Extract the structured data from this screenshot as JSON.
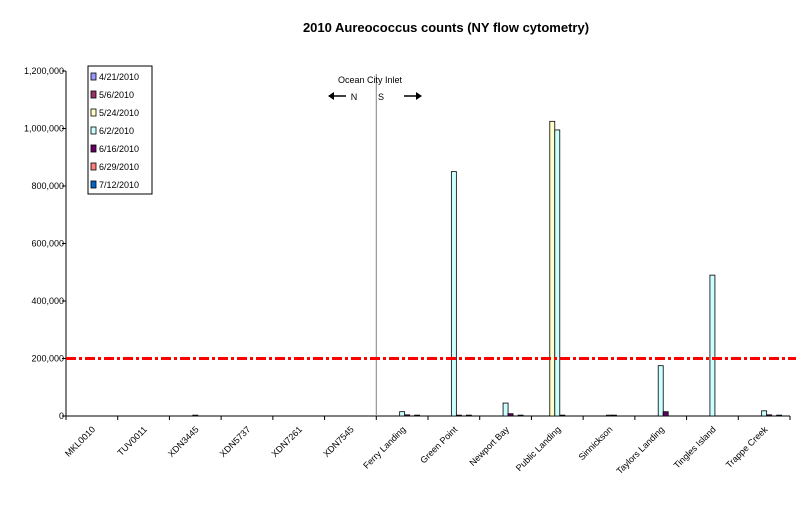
{
  "chart_data": {
    "type": "bar",
    "title": "2010 Aureococcus counts (NY flow cytometry)",
    "xlabel": "",
    "ylabel": "",
    "ylim": [
      0,
      1200000
    ],
    "yticks": [
      0,
      200000,
      400000,
      600000,
      800000,
      1000000,
      1200000
    ],
    "ytick_labels": [
      "0",
      "200,000",
      "400,000",
      "600,000",
      "800,000",
      "1,000,000",
      "1,200,000"
    ],
    "grid": false,
    "legend_position": "top-left",
    "categories": [
      "MKL0010",
      "TUV0011",
      "XDN3445",
      "XDN5737",
      "XDN7261",
      "XDN7545",
      "Ferry Landing",
      "Green Point",
      "Newport Bay",
      "Public Landing",
      "Sinnickson",
      "Taylors Landing",
      "Tingles Island",
      "Trappe Creek"
    ],
    "series": [
      {
        "name": "4/21/2010",
        "color": "#9999ff",
        "values": [
          0,
          0,
          0,
          0,
          0,
          0,
          0,
          0,
          0,
          0,
          0,
          0,
          0,
          0
        ]
      },
      {
        "name": "5/6/2010",
        "color": "#993366",
        "values": [
          0,
          0,
          0,
          0,
          0,
          0,
          0,
          0,
          0,
          0,
          0,
          0,
          0,
          0
        ]
      },
      {
        "name": "5/24/2010",
        "color": "#ffffcc",
        "values": [
          0,
          0,
          0,
          0,
          0,
          0,
          0,
          0,
          0,
          1025000,
          0,
          0,
          0,
          0
        ]
      },
      {
        "name": "6/2/2010",
        "color": "#ccffff",
        "values": [
          0,
          0,
          3000,
          0,
          0,
          0,
          15000,
          850000,
          45000,
          995000,
          3000,
          175000,
          490000,
          18000
        ]
      },
      {
        "name": "6/16/2010",
        "color": "#660066",
        "values": [
          0,
          0,
          0,
          0,
          0,
          0,
          4000,
          3000,
          8000,
          3000,
          3000,
          15000,
          0,
          4000
        ]
      },
      {
        "name": "6/29/2010",
        "color": "#ff8080",
        "values": [
          0,
          0,
          0,
          0,
          0,
          0,
          0,
          0,
          0,
          0,
          0,
          0,
          0,
          0
        ]
      },
      {
        "name": "7/12/2010",
        "color": "#0066cc",
        "values": [
          0,
          0,
          0,
          0,
          0,
          0,
          3000,
          3000,
          3000,
          0,
          0,
          0,
          0,
          3000
        ]
      }
    ],
    "threshold_line": {
      "value": 200000,
      "color": "#ff0000"
    },
    "annotation": {
      "label": "Ocean City Inlet",
      "left": "N",
      "right": "S"
    }
  }
}
